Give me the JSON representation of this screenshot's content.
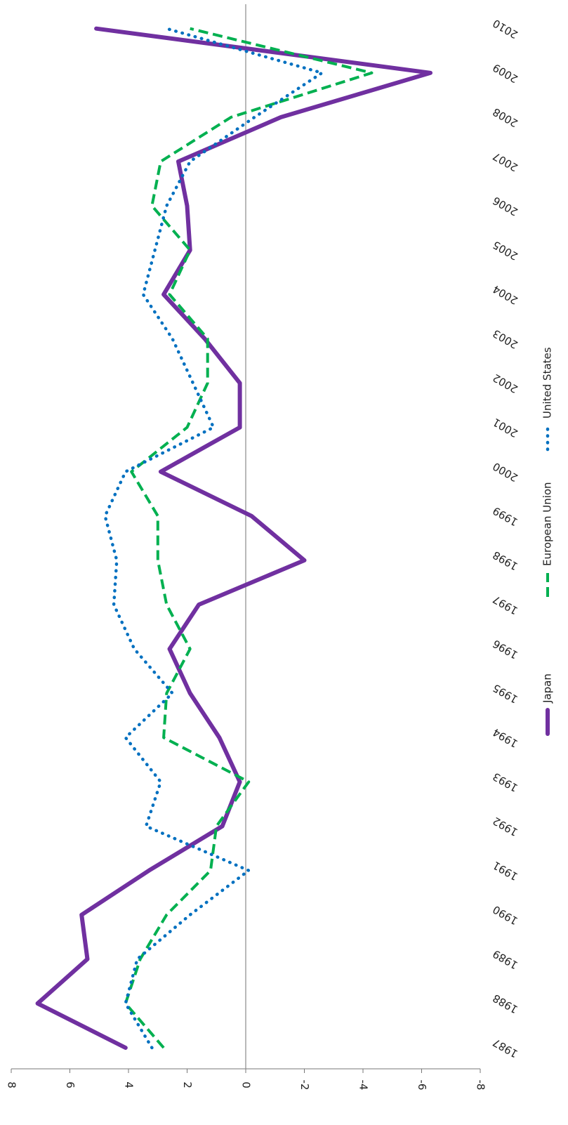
{
  "chart_data": {
    "type": "line",
    "orientation": "rotated-90-clockwise",
    "x": [
      "1987",
      "1988",
      "1989",
      "1990",
      "1991",
      "1992",
      "1993",
      "1994",
      "1995",
      "1996",
      "1997",
      "1998",
      "1999",
      "2000",
      "2001",
      "2002",
      "2003",
      "2004",
      "2005",
      "2006",
      "2007",
      "2008",
      "2009",
      "2010"
    ],
    "ylim": [
      -8,
      8
    ],
    "yticks": [
      -8,
      -6,
      -4,
      -2,
      0,
      2,
      4,
      6,
      8
    ],
    "zero_line": true,
    "grid": false,
    "legend_position": "right",
    "series": [
      {
        "name": "Japan",
        "color": "#7030a0",
        "style": "solid",
        "values": [
          4.1,
          7.1,
          5.4,
          5.6,
          3.3,
          0.8,
          0.2,
          0.9,
          1.9,
          2.6,
          1.6,
          -2.0,
          -0.2,
          2.9,
          0.2,
          0.2,
          1.4,
          2.8,
          1.9,
          2.0,
          2.3,
          -1.2,
          -6.3,
          5.1
        ]
      },
      {
        "name": "European Union",
        "color": "#00b050",
        "style": "dashed",
        "values": [
          2.8,
          4.1,
          3.6,
          2.7,
          1.2,
          1.0,
          -0.1,
          2.8,
          2.7,
          1.9,
          2.7,
          3.0,
          3.0,
          3.9,
          2.0,
          1.3,
          1.3,
          2.6,
          1.9,
          3.2,
          2.9,
          0.5,
          -4.3,
          1.9
        ]
      },
      {
        "name": "United States",
        "color": "#0070c0",
        "style": "dotted",
        "values": [
          3.2,
          4.1,
          3.7,
          1.9,
          -0.1,
          3.4,
          2.9,
          4.1,
          2.5,
          3.8,
          4.5,
          4.4,
          4.8,
          4.1,
          1.1,
          1.8,
          2.5,
          3.5,
          3.1,
          2.7,
          1.9,
          -0.3,
          -2.6,
          2.7
        ]
      }
    ]
  }
}
